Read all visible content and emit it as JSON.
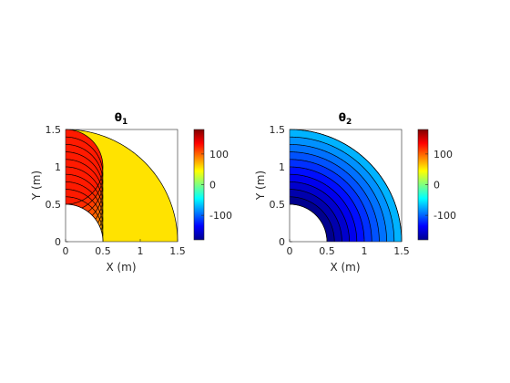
{
  "chart_data": [
    {
      "type": "filled-contour",
      "title": "θ",
      "title_subscript": "1",
      "xlabel": "X (m)",
      "ylabel": "Y (m)",
      "xlim": [
        0,
        1.5
      ],
      "ylim": [
        0,
        1.5
      ],
      "xticks": [
        "0",
        "0.5",
        "1",
        "1.5"
      ],
      "yticks": [
        "0",
        "0.5",
        "1",
        "1.5"
      ],
      "domain": "quarter annulus, inner radius 0.5, outer radius 1.5",
      "colormap": "jet",
      "clim": [
        -180,
        180
      ],
      "colorbar_ticks": [
        "100",
        "0",
        "-100"
      ],
      "colorbar_tick_values": [
        100,
        0,
        -100
      ],
      "contour_curves": "arcs of radius 0.5 centred on the y-axis",
      "contour_levels": [
        {
          "center_y": 1.0,
          "value": 126
        },
        {
          "center_y": 0.9,
          "value": 120
        },
        {
          "center_y": 0.8,
          "value": 113
        },
        {
          "center_y": 0.7,
          "value": 106
        },
        {
          "center_y": 0.6,
          "value": 99
        },
        {
          "center_y": 0.5,
          "value": 92
        },
        {
          "center_y": 0.4,
          "value": 85
        },
        {
          "center_y": 0.3,
          "value": 79
        },
        {
          "center_y": 0.2,
          "value": 72
        },
        {
          "center_y": 0.1,
          "value": 65
        },
        {
          "center_y": 0.0,
          "value": 58
        }
      ]
    },
    {
      "type": "filled-contour",
      "title": "θ",
      "title_subscript": "2",
      "xlabel": "X (m)",
      "ylabel": "Y (m)",
      "xlim": [
        0,
        1.5
      ],
      "ylim": [
        0,
        1.5
      ],
      "xticks": [
        "0",
        "0.5",
        "1",
        "1.5"
      ],
      "yticks": [
        "0",
        "0.5",
        "1",
        "1.5"
      ],
      "domain": "quarter annulus, inner radius 0.5, outer radius 1.5",
      "colormap": "jet",
      "clim": [
        -180,
        180
      ],
      "colorbar_ticks": [
        "100",
        "0",
        "-100"
      ],
      "colorbar_tick_values": [
        100,
        0,
        -100
      ],
      "contour_curves": "concentric arcs centred on the origin",
      "contour_levels": [
        {
          "radius": 0.5,
          "value": -180
        },
        {
          "radius": 0.6,
          "value": -170
        },
        {
          "radius": 0.7,
          "value": -158
        },
        {
          "radius": 0.8,
          "value": -147
        },
        {
          "radius": 0.9,
          "value": -136
        },
        {
          "radius": 1.0,
          "value": -124
        },
        {
          "radius": 1.1,
          "value": -112
        },
        {
          "radius": 1.2,
          "value": -100
        },
        {
          "radius": 1.3,
          "value": -90
        },
        {
          "radius": 1.4,
          "value": -78
        },
        {
          "radius": 1.5,
          "value": -66
        }
      ]
    }
  ]
}
